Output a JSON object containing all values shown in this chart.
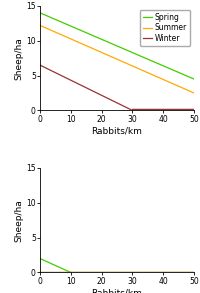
{
  "top_spring_start": 14.0,
  "top_spring_end": 4.5,
  "top_summer_start": 12.2,
  "top_summer_end": 2.5,
  "top_winter_start": 6.5,
  "top_winter_zero_x": 30,
  "top_winter_floor": 0.15,
  "bottom_spring_start": 2.0,
  "bottom_spring_zero_x": 10,
  "x_max": 50,
  "y_max": 15,
  "y_ticks": [
    0,
    5,
    10,
    15
  ],
  "x_ticks": [
    0,
    10,
    20,
    30,
    40,
    50
  ],
  "spring_color": "#44cc00",
  "summer_color": "#ffaa00",
  "winter_color": "#993333",
  "xlabel": "Rabbits/km",
  "ylabel": "Sheep/ha",
  "legend_labels": [
    "Spring",
    "Summer",
    "Winter"
  ],
  "legend_fontsize": 5.5,
  "tick_fontsize": 5.5,
  "label_fontsize": 6.5
}
